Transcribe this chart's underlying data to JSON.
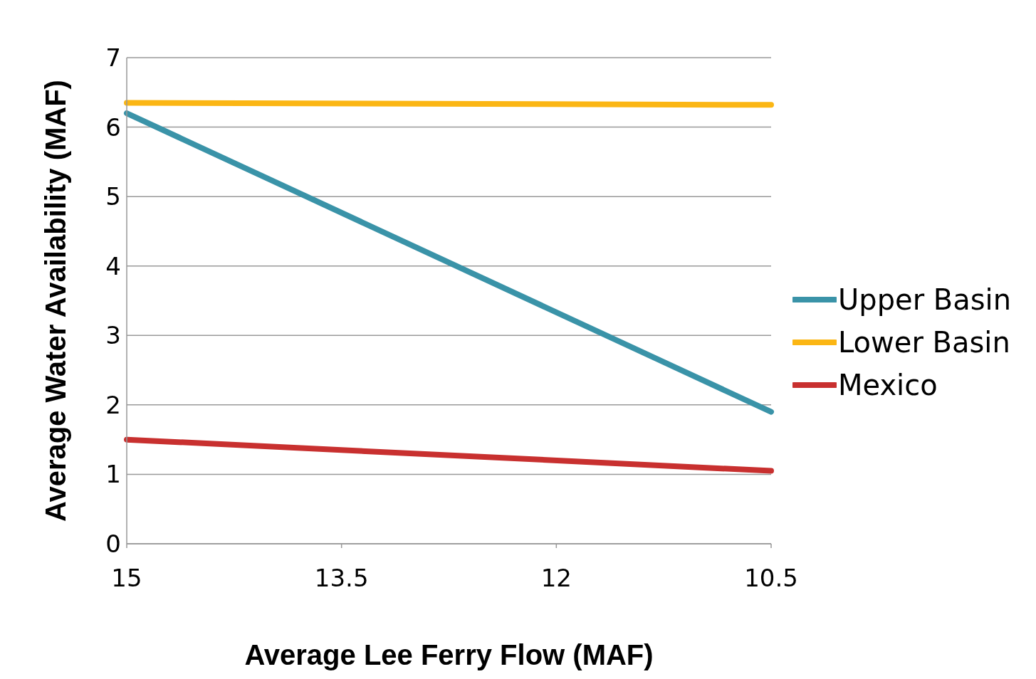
{
  "chart_data": {
    "type": "line",
    "xlabel": "Average Lee Ferry Flow (MAF)",
    "ylabel": "Average Water Availability (MAF)",
    "categories": [
      "15",
      "13.5",
      "12",
      "10.5"
    ],
    "series": [
      {
        "name": "Upper Basin",
        "color": "#3a93a8",
        "values": [
          6.2,
          null,
          null,
          1.9
        ]
      },
      {
        "name": "Lower Basin",
        "color": "#fbb614",
        "values": [
          6.35,
          null,
          null,
          6.32
        ]
      },
      {
        "name": "Mexico",
        "color": "#c8302f",
        "values": [
          1.5,
          null,
          null,
          1.05
        ]
      }
    ],
    "ylim": [
      0,
      7
    ],
    "yticks": [
      0,
      1,
      2,
      3,
      4,
      5,
      6,
      7
    ],
    "grid": "y",
    "legend": "right",
    "marker": "none",
    "line_style": "solid"
  }
}
